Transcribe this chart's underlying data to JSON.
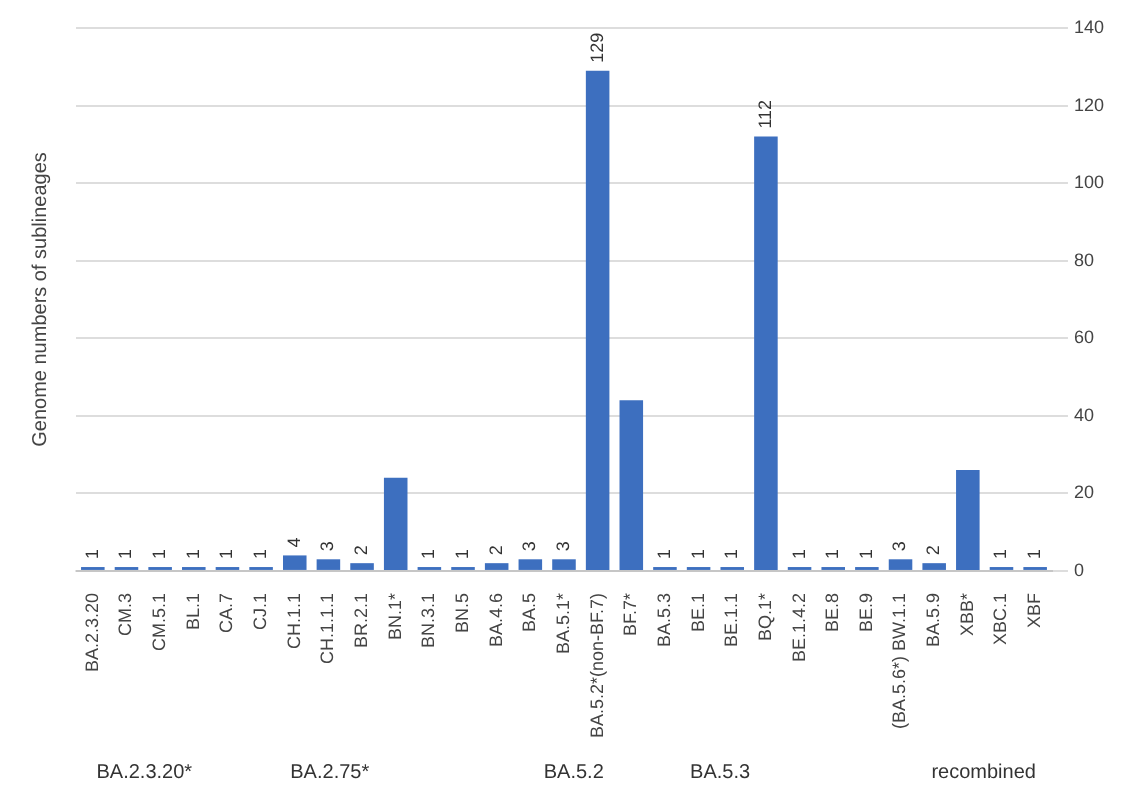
{
  "chart_data": {
    "type": "bar",
    "ylabel": "Genome numbers of sublineages",
    "categories": [
      "BA.2.3.20",
      "CM.3",
      "CM.5.1",
      "BL.1",
      "CA.7",
      "CJ.1",
      "CH.1.1",
      "CH.1.1.1",
      "BR.2.1",
      "BN.1*",
      "BN.3.1",
      "BN.5",
      "BA.4.6",
      "BA.5",
      "BA.5.1*",
      "BA.5.2*(non-BF.7)",
      "BF.7*",
      "BA.5.3",
      "BE.1",
      "BE.1.1",
      "BQ.1*",
      "BE.1.4.2",
      "BE.8",
      "BE.9",
      "(BA.5.6*) BW.1.1",
      "BA.5.9",
      "XBB*",
      "XBC.1",
      "XBF"
    ],
    "values": [
      1,
      1,
      1,
      1,
      1,
      1,
      4,
      3,
      2,
      24,
      1,
      1,
      2,
      3,
      3,
      129,
      44,
      1,
      1,
      1,
      112,
      1,
      1,
      1,
      3,
      2,
      26,
      1,
      1
    ],
    "value_labels": [
      "1",
      "1",
      "1",
      "1",
      "1",
      "1",
      "4",
      "3",
      "2",
      null,
      "1",
      "1",
      "2",
      "3",
      "3",
      "129",
      null,
      "1",
      "1",
      "1",
      "112",
      "1",
      "1",
      "1",
      "3",
      "2",
      null,
      "1",
      "1"
    ],
    "color": "#3d6fbf",
    "ylim": [
      0,
      140
    ],
    "yticks": [
      0,
      20,
      40,
      60,
      80,
      100,
      120,
      140
    ],
    "grid": "y",
    "annotations": [
      "BA.2.3.20*",
      "BA.2.75*",
      "BA.5.2",
      "BA.5.3",
      "recombined"
    ]
  }
}
